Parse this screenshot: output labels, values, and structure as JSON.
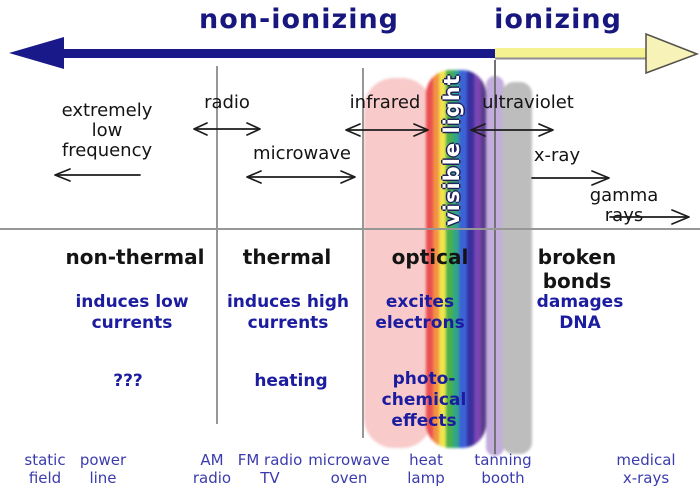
{
  "header": {
    "non_ionizing": "non-ionizing",
    "ionizing": "ionizing"
  },
  "spectrum": {
    "elf": "extremely\nlow\nfrequency",
    "radio": "radio",
    "microwave": "microwave",
    "infrared": "infrared",
    "visible_light": "visible light",
    "ultraviolet": "ultraviolet",
    "xray": "x-ray",
    "gamma": "gamma rays"
  },
  "effects": {
    "non_thermal": "non-thermal",
    "thermal": "thermal",
    "optical": "optical",
    "broken_bonds": "broken bonds",
    "induces_low": "induces low\ncurrents",
    "induces_high": "induces high\ncurrents",
    "excites_electrons": "excites\nelectrons",
    "damages_dna": "damages\nDNA",
    "unknown": "???",
    "heating": "heating",
    "photochemical": "photo-\nchemical\neffects"
  },
  "examples": [
    {
      "label": "static\nfield"
    },
    {
      "label": "power\nline"
    },
    {
      "label": "AM\nradio"
    },
    {
      "label": "FM radio\nTV"
    },
    {
      "label": "microwave\noven"
    },
    {
      "label": "heat\nlamp"
    },
    {
      "label": "tanning\nbooth"
    },
    {
      "label": "medical\nx-rays"
    }
  ],
  "colors": {
    "navy": "#17177f",
    "arrow_blue": "#191989",
    "arrow_yellow": "#f5f292",
    "arrow_yellow_head": "#f7f3b8",
    "blue_text": "#1c1ca0",
    "bottom_text": "#3b3bae",
    "black_text": "#141414",
    "line_gray": "#979797",
    "infrared_band": "#f8caca",
    "uv_band": "#bdbdbd",
    "uv_fringe": "#c2addc",
    "rainbow": [
      {
        "name": "red",
        "hex": "#ea5050",
        "width": 7
      },
      {
        "name": "orange",
        "hex": "#f29244",
        "width": 6
      },
      {
        "name": "yellow",
        "hex": "#f1e44c",
        "width": 7
      },
      {
        "name": "green",
        "hex": "#4cb04c",
        "width": 7
      },
      {
        "name": "teal",
        "hex": "#2fa689",
        "width": 6
      },
      {
        "name": "blue",
        "hex": "#3c63d6",
        "width": 8
      },
      {
        "name": "indigo",
        "hex": "#38309e",
        "width": 7
      },
      {
        "name": "violet",
        "hex": "#7a46b2",
        "width": 7
      },
      {
        "name": "dark-violet",
        "hex": "#5a3a88",
        "width": 5
      }
    ]
  }
}
